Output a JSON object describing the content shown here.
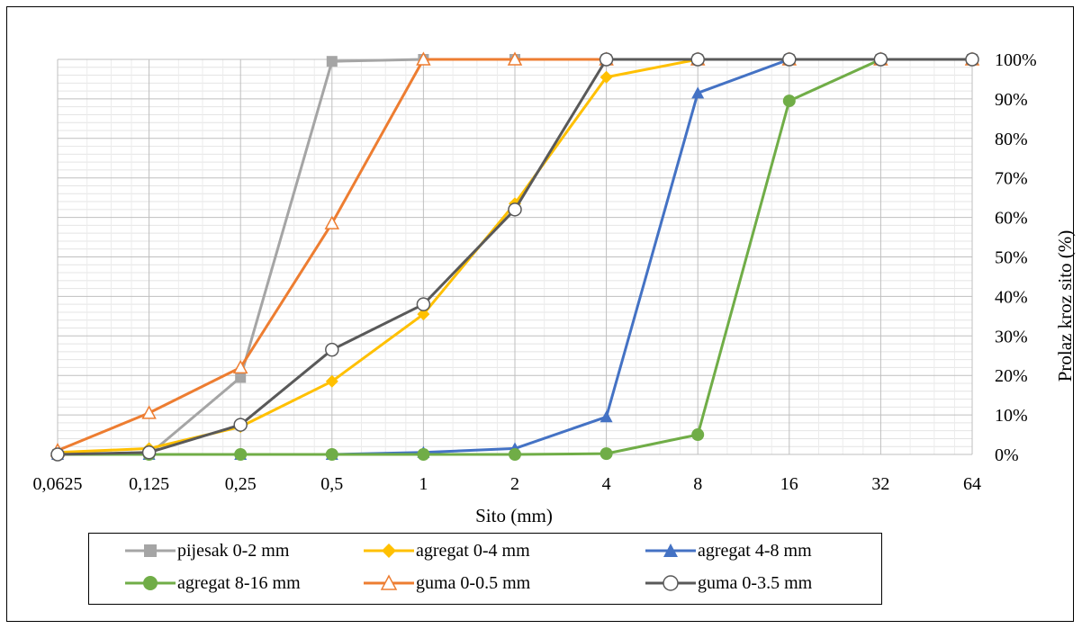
{
  "chart_data": {
    "type": "line",
    "xlabel": "Sito (mm)",
    "ylabel": "Prolaz kroz sito (%)",
    "x_scale": "log2",
    "x": [
      "0,0625",
      "0,125",
      "0,25",
      "0,5",
      "1",
      "2",
      "4",
      "8",
      "16",
      "32",
      "64"
    ],
    "ylim": [
      0,
      100
    ],
    "y_ticks": [
      "0%",
      "10%",
      "20%",
      "30%",
      "40%",
      "50%",
      "60%",
      "70%",
      "80%",
      "90%",
      "100%"
    ],
    "grid": true,
    "legend_position": "bottom",
    "series": [
      {
        "name": "pijesak 0-2 mm",
        "color": "#A5A5A5",
        "marker": "square",
        "values": [
          0,
          0,
          19.5,
          99.5,
          100,
          100,
          100,
          100,
          100,
          100,
          100
        ]
      },
      {
        "name": "agregat 0-4 mm",
        "color": "#FFC000",
        "marker": "diamond",
        "values": [
          0.5,
          1.5,
          7,
          18.5,
          35.5,
          63.5,
          95.5,
          100,
          100,
          100,
          100
        ]
      },
      {
        "name": "agregat 4-8 mm",
        "color": "#4472C4",
        "marker": "triangle",
        "values": [
          0,
          0,
          0,
          0,
          0.5,
          1.5,
          9.5,
          91.5,
          100,
          100,
          100
        ]
      },
      {
        "name": "agregat 8-16 mm",
        "color": "#70AD47",
        "marker": "circle",
        "values": [
          0,
          0,
          0,
          0,
          0,
          0,
          0.2,
          5,
          89.5,
          100,
          100
        ]
      },
      {
        "name": "guma 0-0.5 mm",
        "color": "#ED7D31",
        "marker": "open-triangle",
        "values": [
          1,
          10.5,
          22,
          58.5,
          100,
          100,
          100,
          100,
          100,
          100,
          100
        ]
      },
      {
        "name": "guma 0-3.5 mm",
        "color": "#595959",
        "marker": "open-circle",
        "values": [
          0,
          0.5,
          7.5,
          26.5,
          38,
          62,
          100,
          100,
          100,
          100,
          100
        ]
      }
    ]
  }
}
